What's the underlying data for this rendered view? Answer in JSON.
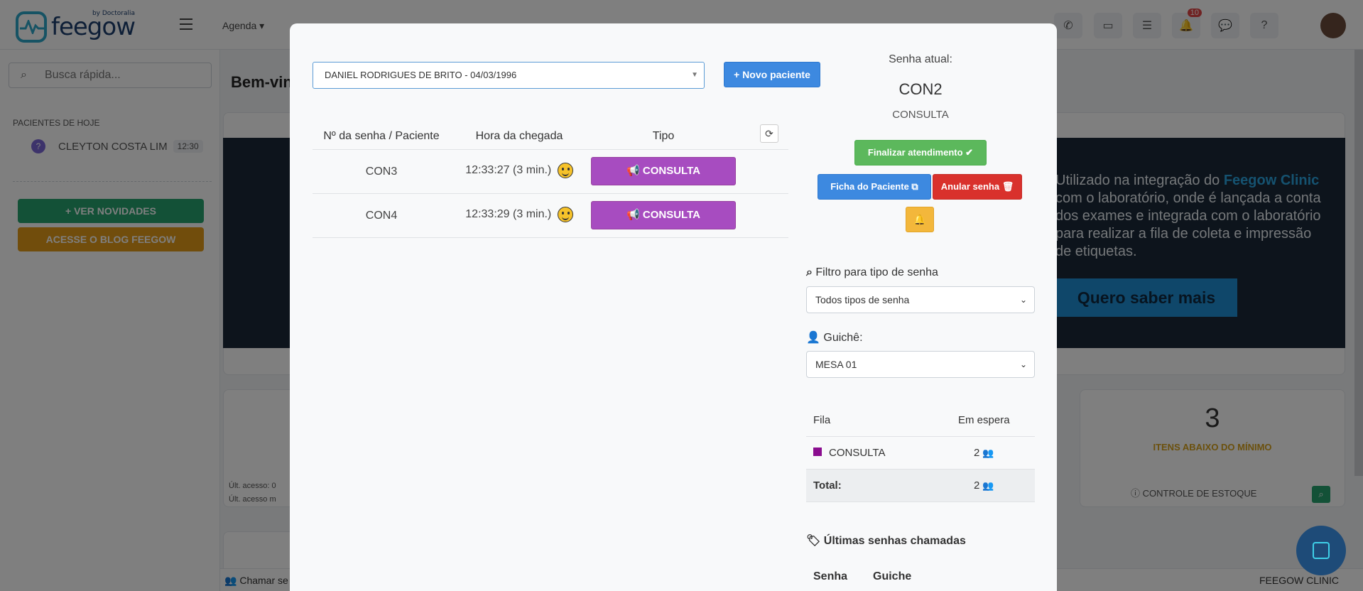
{
  "app": {
    "brand": "feegow",
    "brand_sub": "by Doctoralia",
    "nav": [
      "Agenda"
    ],
    "notification_count": "10"
  },
  "sidebar": {
    "search_placeholder": "Busca rápida...",
    "today_heading": "PACIENTES DE HOJE",
    "patients": [
      {
        "name": "CLEYTON COSTA LIM",
        "time": "12:30"
      }
    ],
    "news_button": "+ VER NOVIDADES",
    "blog_button": "ACESSE O BLOG FEEGOW"
  },
  "main": {
    "welcome": "Bem-vin",
    "banner_text_pre": "Utilizado na integração do ",
    "banner_text_brand": "Feegow Clinic",
    "banner_text_post": " com o laboratório, onde é lançada a conta dos exames e integrada com o laboratório para realizar a fila de coleta e impressão de etiquetas.",
    "banner_button": "Quero saber mais",
    "access_ok": "Últ. acesso: 0",
    "access_warn": "Últ. acesso m",
    "stock_count": "3",
    "stock_label": "ITENS ABAIXO DO MÍNIMO",
    "stock_link": "CONTROLE DE ESTOQUE",
    "footer_left": "Chamar se",
    "footer_right": "FEEGOW CLINIC"
  },
  "modal": {
    "patient_select": "DANIEL RODRIGUES DE BRITO - 04/03/1996",
    "new_patient_button": "+ Novo paciente",
    "queue_headers": {
      "senha": "Nº da senha / Paciente",
      "chegada": "Hora da chegada",
      "tipo": "Tipo"
    },
    "queue_rows": [
      {
        "senha": "CON3",
        "time": "12:33:27",
        "wait": "(3 min.)",
        "tipo": "CONSULTA"
      },
      {
        "senha": "CON4",
        "time": "12:33:29",
        "wait": "(3 min.)",
        "tipo": "CONSULTA"
      }
    ],
    "current_label": "Senha atual:",
    "current_code": "CON2",
    "current_type": "CONSULTA",
    "finish_button": "Finalizar atendimento",
    "chart_button": "Ficha do Paciente",
    "cancel_button": "Anular senha",
    "filter_label": "Filtro para tipo de senha",
    "filter_value": "Todos tipos de senha",
    "desk_label": "Guichê:",
    "desk_value": "MESA 01",
    "fila_headers": {
      "fila": "Fila",
      "espera": "Em espera"
    },
    "fila_rows": [
      {
        "fila": "CONSULTA",
        "count": "2",
        "color": "#8a0d8f"
      }
    ],
    "total_label": "Total:",
    "total_count": "2",
    "last_called_label": "Últimas senhas chamadas",
    "last_headers": {
      "senha": "Senha",
      "guiche": "Guiche"
    }
  },
  "colors": {
    "accent_blue": "#3d89e0",
    "success": "#5cb85c",
    "danger": "#d9312c",
    "warning": "#f3b73b",
    "consulta": "#a74cc0"
  }
}
